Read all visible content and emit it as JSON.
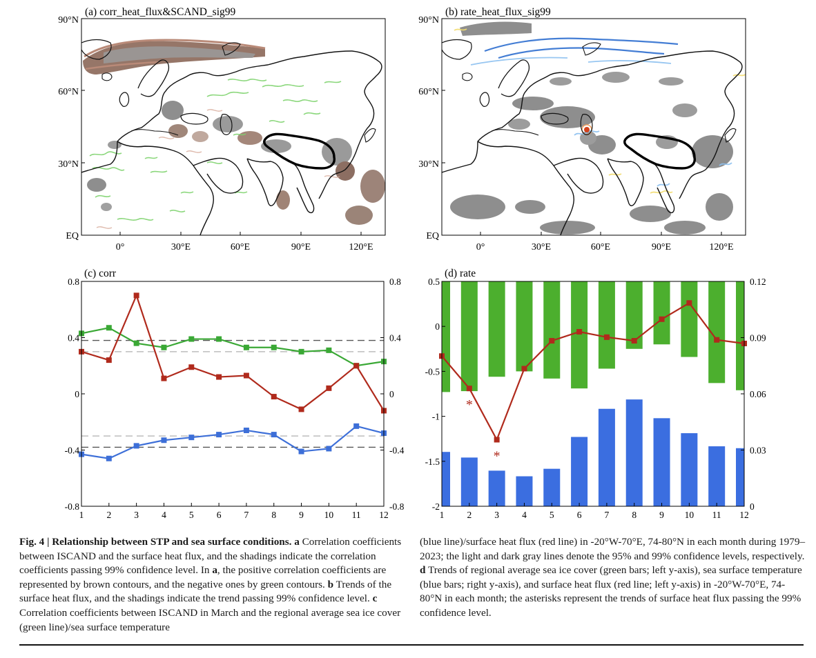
{
  "maps": {
    "a": {
      "title": "(a) corr_heat_flux&SCAND_sig99"
    },
    "b": {
      "title": "(b) rate_heat_flux_sig99"
    },
    "lat_labels": [
      "90°N",
      "60°N",
      "30°N",
      "EQ"
    ],
    "lon_labels": [
      "0°",
      "30°E",
      "60°E",
      "90°E",
      "120°E"
    ]
  },
  "chart_data": [
    {
      "type": "line",
      "title": "(c) corr",
      "x": [
        1,
        2,
        3,
        4,
        5,
        6,
        7,
        8,
        9,
        10,
        11,
        12
      ],
      "ylim": [
        -0.8,
        0.8
      ],
      "yticks_left": [
        "0.8",
        "0.4",
        "0",
        "-0.4",
        "-0.8"
      ],
      "yticks_right": [
        "0.8",
        "0.4",
        "0",
        "-0.4",
        "-0.8"
      ],
      "series": [
        {
          "color_name": "green",
          "color": "#3aa835",
          "values": [
            0.43,
            0.47,
            0.36,
            0.33,
            0.39,
            0.39,
            0.33,
            0.33,
            0.3,
            0.31,
            0.2,
            0.23
          ]
        },
        {
          "color_name": "red",
          "color": "#b02a1c",
          "values": [
            0.3,
            0.24,
            0.7,
            0.11,
            0.19,
            0.12,
            0.13,
            -0.02,
            -0.11,
            0.04,
            0.2,
            -0.12
          ]
        },
        {
          "color_name": "blue",
          "color": "#3d6fd8",
          "values": [
            -0.43,
            -0.46,
            -0.37,
            -0.33,
            -0.31,
            -0.29,
            -0.26,
            -0.29,
            -0.41,
            -0.39,
            -0.23,
            -0.28
          ]
        }
      ],
      "reference_lines": [
        {
          "value": 0.38,
          "style": "dark dashed"
        },
        {
          "value": 0.3,
          "style": "light dashed"
        },
        {
          "value": -0.3,
          "style": "light dashed"
        },
        {
          "value": -0.38,
          "style": "dark dashed"
        }
      ]
    },
    {
      "type": "bar",
      "title": "(d) rate",
      "x": [
        1,
        2,
        3,
        4,
        5,
        6,
        7,
        8,
        9,
        10,
        11,
        12
      ],
      "ylim_left": [
        -2,
        0.5
      ],
      "ylim_right": [
        0,
        0.12
      ],
      "yticks_left": [
        "0.5",
        "0",
        "-0.5",
        "-1",
        "-1.5",
        "-2"
      ],
      "yticks_right": [
        "0.12",
        "0.09",
        "0.06",
        "0.03",
        "0"
      ],
      "sea_ice_cover_bars_left_axis": [
        -0.73,
        -0.72,
        -0.56,
        -0.5,
        -0.58,
        -0.69,
        -0.47,
        -0.25,
        -0.2,
        -0.34,
        -0.63,
        -0.71
      ],
      "sst_bars_right_axis": [
        0.029,
        0.026,
        0.019,
        0.016,
        0.02,
        0.037,
        0.052,
        0.057,
        0.047,
        0.039,
        0.032,
        0.031
      ],
      "heat_flux_line_left_axis": [
        -0.33,
        -0.69,
        -1.26,
        -0.47,
        -0.16,
        -0.06,
        -0.12,
        -0.16,
        0.08,
        0.26,
        -0.15,
        -0.19
      ],
      "asterisk_months": [
        2,
        3
      ],
      "colors": {
        "ice": "#4caf2e",
        "sst": "#3b6ee0",
        "flux": "#b02a1c"
      }
    }
  ],
  "caption": {
    "left": {
      "figlabel": "Fig. 4 | Relationship between STP and sea surface conditions.",
      "a_bold": "a",
      "a_text": " Correlation coefficients between ISCAND and the surface heat flux, and the shadings indicate the correlation coefficients passing 99% confidence level. In ",
      "a2_bold": "a",
      "a2_text": ", the positive correlation coefficients are represented by brown contours, and the negative ones by green contours. ",
      "b_bold": "b",
      "b_text": " Trends of the surface heat flux, and the shadings indicate the trend passing 99% confidence level. ",
      "c_bold": "c",
      "c_text": " Correlation coefficients between ISCAND in March and the regional average sea ice cover (green line)/sea surface temperature"
    },
    "right": {
      "text1": "(blue line)/surface heat flux (red line) in -20°W-70°E, 74-80°N in each month during 1979–2023; the light and dark gray lines denote the 95% and 99% confidence levels, respectively. ",
      "d_bold": "d",
      "text2": " Trends of regional average sea ice cover (green bars; left y-axis), sea surface temperature (blue bars; right y-axis), and surface heat flux (red line; left y-axis) in -20°W-70°E, 74-80°N in each month; the asterisks represent the trends of surface heat flux passing the 99% confidence level."
    }
  }
}
